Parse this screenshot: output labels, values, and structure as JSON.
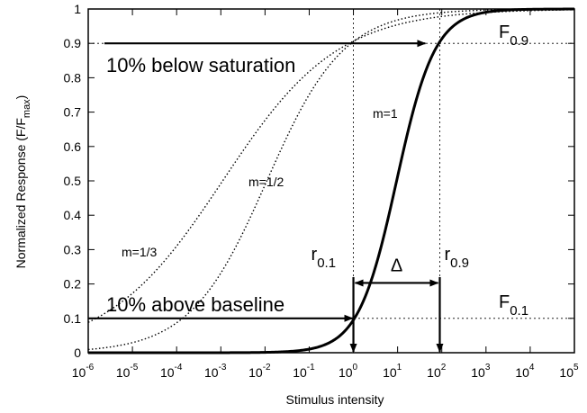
{
  "chart_data": {
    "type": "line",
    "xlabel": "Stimulus intensity",
    "ylabel": {
      "main": "Normalized Response (F/F",
      "sub": "max",
      "close": ")"
    },
    "x_scale": "log",
    "xlim": [
      1e-06,
      100000.0
    ],
    "ylim": [
      0,
      1
    ],
    "x_ticks": [
      {
        "base": "10",
        "exp": "-6",
        "value": 1e-06
      },
      {
        "base": "10",
        "exp": "-5",
        "value": 1e-05
      },
      {
        "base": "10",
        "exp": "-4",
        "value": 0.0001
      },
      {
        "base": "10",
        "exp": "-3",
        "value": 0.001
      },
      {
        "base": "10",
        "exp": "-2",
        "value": 0.01
      },
      {
        "base": "10",
        "exp": "-1",
        "value": 0.1
      },
      {
        "base": "10",
        "exp": "0",
        "value": 1
      },
      {
        "base": "10",
        "exp": "1",
        "value": 10
      },
      {
        "base": "10",
        "exp": "2",
        "value": 100
      },
      {
        "base": "10",
        "exp": "3",
        "value": 1000
      },
      {
        "base": "10",
        "exp": "4",
        "value": 10000
      },
      {
        "base": "10",
        "exp": "5",
        "value": 100000
      }
    ],
    "y_ticks": [
      "0",
      "0.1",
      "0.2",
      "0.3",
      "0.4",
      "0.5",
      "0.6",
      "0.7",
      "0.8",
      "0.9",
      "1"
    ],
    "grid": false,
    "legend": "none",
    "series": [
      {
        "label": "m=1",
        "style": "solid",
        "m": 1,
        "ec50": 9.5
      },
      {
        "label": "m=1/2",
        "style": "dotted",
        "m": 0.5,
        "ec50": 0.011
      },
      {
        "label": "m=1/3",
        "style": "dotted",
        "m": 0.3333,
        "ec50": 0.0011
      }
    ],
    "reference_lines": {
      "y": [
        0.1,
        0.9
      ],
      "x": [
        1,
        90
      ]
    },
    "annotations": {
      "below_saturation": "10% below saturation",
      "above_baseline": "10% above baseline",
      "f09": {
        "main": "F",
        "sub": "0.9"
      },
      "f01": {
        "main": "F",
        "sub": "0.1"
      },
      "r01": {
        "main": "r",
        "sub": "0.1"
      },
      "r09": {
        "main": "r",
        "sub": "0.9"
      },
      "delta": "Δ"
    }
  }
}
